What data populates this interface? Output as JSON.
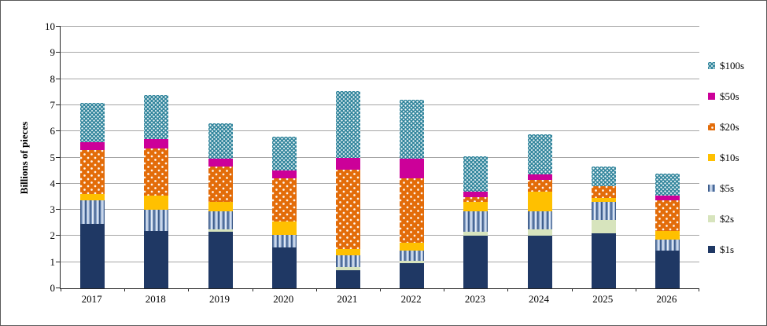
{
  "figure": {
    "ylabel": "Billions of pieces"
  },
  "chart_data": {
    "type": "bar",
    "stacked": true,
    "title": "",
    "xlabel": "",
    "ylabel": "Billions of pieces",
    "ylim": [
      0,
      10
    ],
    "y_tick_step": 1,
    "grid": "horizontal",
    "gridline_color": "#a6a6a6",
    "legend_position": "right",
    "categories": [
      "2017",
      "2018",
      "2019",
      "2020",
      "2021",
      "2022",
      "2023",
      "2024",
      "2025",
      "2026"
    ],
    "series": [
      {
        "name": "$1s",
        "color": "#1f3864",
        "pattern": "solid",
        "values": [
          2.45,
          2.2,
          2.15,
          1.55,
          0.7,
          0.95,
          2.0,
          2.0,
          2.1,
          1.45
        ]
      },
      {
        "name": "$2s",
        "color": "#d7e4bd",
        "pattern": "solid",
        "values": [
          0,
          0,
          0.1,
          0,
          0.1,
          0.1,
          0.15,
          0.25,
          0.5,
          0
        ]
      },
      {
        "name": "$5s",
        "color": "#95b3d7",
        "pattern": "vstripes",
        "values": [
          0.9,
          0.8,
          0.7,
          0.5,
          0.45,
          0.4,
          0.8,
          0.7,
          0.7,
          0.4
        ]
      },
      {
        "name": "$10s",
        "color": "#ffc000",
        "pattern": "solid",
        "values": [
          0.25,
          0.55,
          0.35,
          0.5,
          0.25,
          0.3,
          0.35,
          0.75,
          0.15,
          0.35
        ]
      },
      {
        "name": "$20s",
        "color": "#e36c09",
        "pattern": "dots-sparse",
        "values": [
          1.7,
          1.8,
          1.35,
          1.65,
          3.05,
          2.45,
          0.2,
          0.45,
          0.45,
          1.15
        ]
      },
      {
        "name": "$50s",
        "color": "#cc0099",
        "pattern": "solid",
        "values": [
          0.3,
          0.35,
          0.3,
          0.3,
          0.45,
          0.75,
          0.2,
          0.2,
          0,
          0.2
        ]
      },
      {
        "name": "$100s",
        "color": "#31859c",
        "pattern": "dots-dense",
        "values": [
          1.5,
          1.7,
          1.35,
          1.3,
          2.55,
          2.25,
          1.35,
          1.55,
          0.75,
          0.85
        ]
      }
    ],
    "legend_order": [
      "$100s",
      "$50s",
      "$20s",
      "$10s",
      "$5s",
      "$2s",
      "$1s"
    ],
    "totals": [
      7.1,
      7.4,
      6.3,
      5.8,
      7.55,
      7.2,
      5.05,
      5.9,
      4.65,
      4.4
    ]
  }
}
